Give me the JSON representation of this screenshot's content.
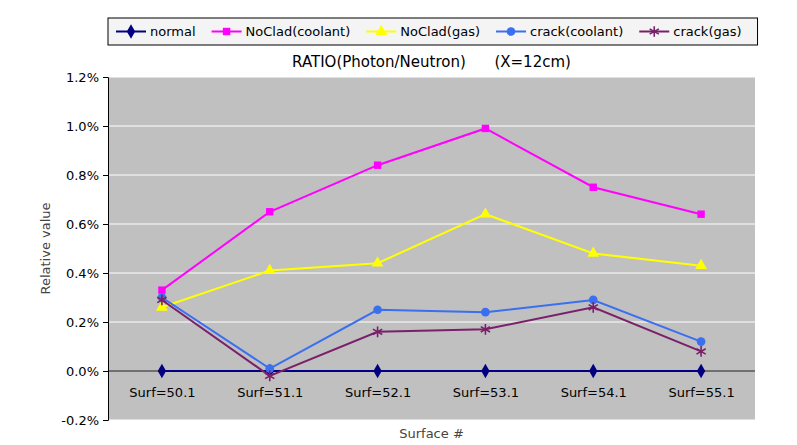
{
  "chart_data": {
    "type": "line",
    "title": "RATIO(Photon/Neutron)      (X=12cm)",
    "x_label": "Surface #",
    "y_label": "Relative value",
    "categories": [
      "Surf=50.1",
      "Surf=51.1",
      "Surf=52.1",
      "Surf=53.1",
      "Surf=54.1",
      "Surf=55.1"
    ],
    "series": [
      {
        "name": "normal",
        "color": "#000080",
        "marker": "diamond",
        "values": [
          0,
          0,
          0,
          0,
          0,
          0
        ]
      },
      {
        "name": "NoClad(coolant)",
        "color": "#ff00ff",
        "marker": "square",
        "values": [
          0.33,
          0.65,
          0.84,
          0.99,
          0.75,
          0.64
        ]
      },
      {
        "name": "NoClad(gas)",
        "color": "#ffff00",
        "marker": "triangle",
        "values": [
          0.26,
          0.41,
          0.44,
          0.64,
          0.48,
          0.43
        ]
      },
      {
        "name": "crack(coolant)",
        "color": "#3a6ff0",
        "marker": "circle",
        "values": [
          0.3,
          0.01,
          0.25,
          0.24,
          0.29,
          0.12
        ]
      },
      {
        "name": "crack(gas)",
        "color": "#7a1f6a",
        "marker": "star",
        "values": [
          0.29,
          -0.02,
          0.16,
          0.17,
          0.26,
          0.08
        ]
      }
    ],
    "ylim": [
      -0.2,
      1.2
    ],
    "yticks": [
      {
        "value": -0.2,
        "label": "-0.2%"
      },
      {
        "value": 0,
        "label": "0.0%"
      },
      {
        "value": 0.2,
        "label": "0.2%"
      },
      {
        "value": 0.4,
        "label": "0.4%"
      },
      {
        "value": 0.6,
        "label": "0.6%"
      },
      {
        "value": 0.8,
        "label": "0.8%"
      },
      {
        "value": 1.0,
        "label": "1.0%"
      },
      {
        "value": 1.2,
        "label": "1.2%"
      }
    ],
    "grid": true,
    "legend": "top"
  }
}
